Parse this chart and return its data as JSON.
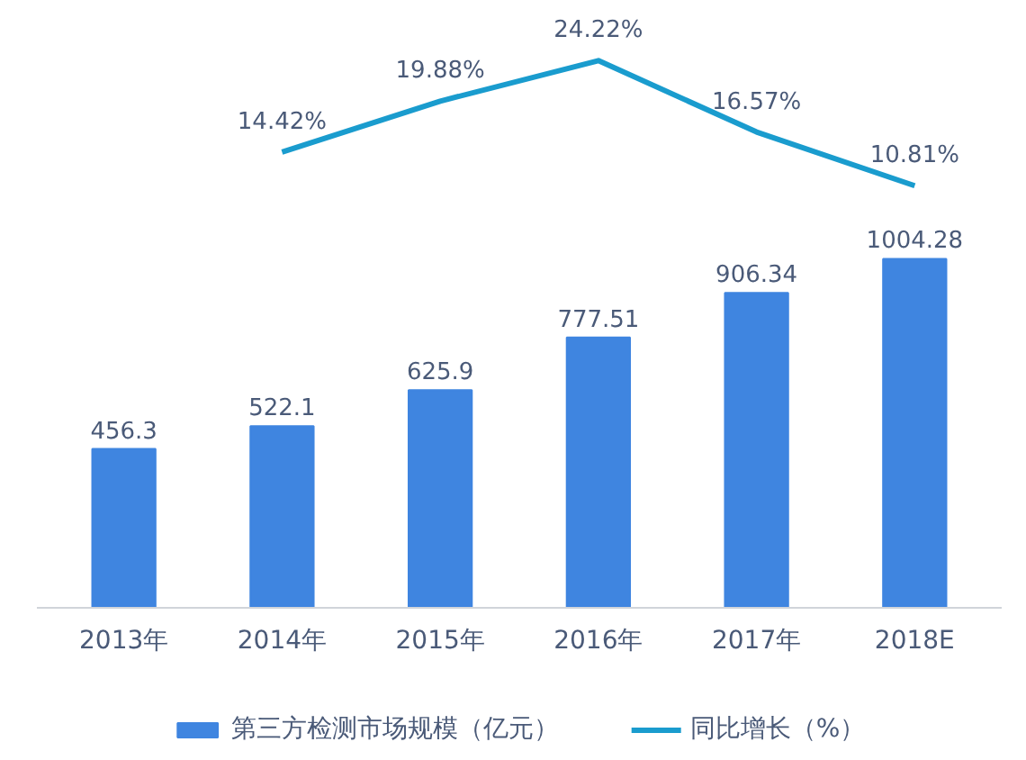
{
  "chart_data": [
    {
      "type": "line",
      "categories": [
        null,
        null,
        null,
        null,
        null,
        null
      ],
      "series": [
        {
          "name": "同比增长（%）",
          "color": "#1a9cce",
          "values": [
            null,
            14.42,
            19.88,
            24.22,
            16.57,
            10.81
          ],
          "value_labels": [
            null,
            "14.42%",
            "19.88%",
            "24.22%",
            "16.57%",
            "10.81%"
          ]
        }
      ],
      "tick_labels": false,
      "marker": "none",
      "line_style": "solid"
    },
    {
      "type": "bar",
      "categories": [
        "2013年",
        "2014年",
        "2015年",
        "2016年",
        "2017年",
        "2018E"
      ],
      "series": [
        {
          "name": "第三方检测市场规模（亿元）",
          "color": "#3f85e0",
          "values": [
            456.3,
            522.1,
            625.9,
            777.51,
            906.34,
            1004.28
          ]
        }
      ],
      "data_labels": true,
      "tick_labels": "x",
      "legend": "bottom"
    }
  ]
}
